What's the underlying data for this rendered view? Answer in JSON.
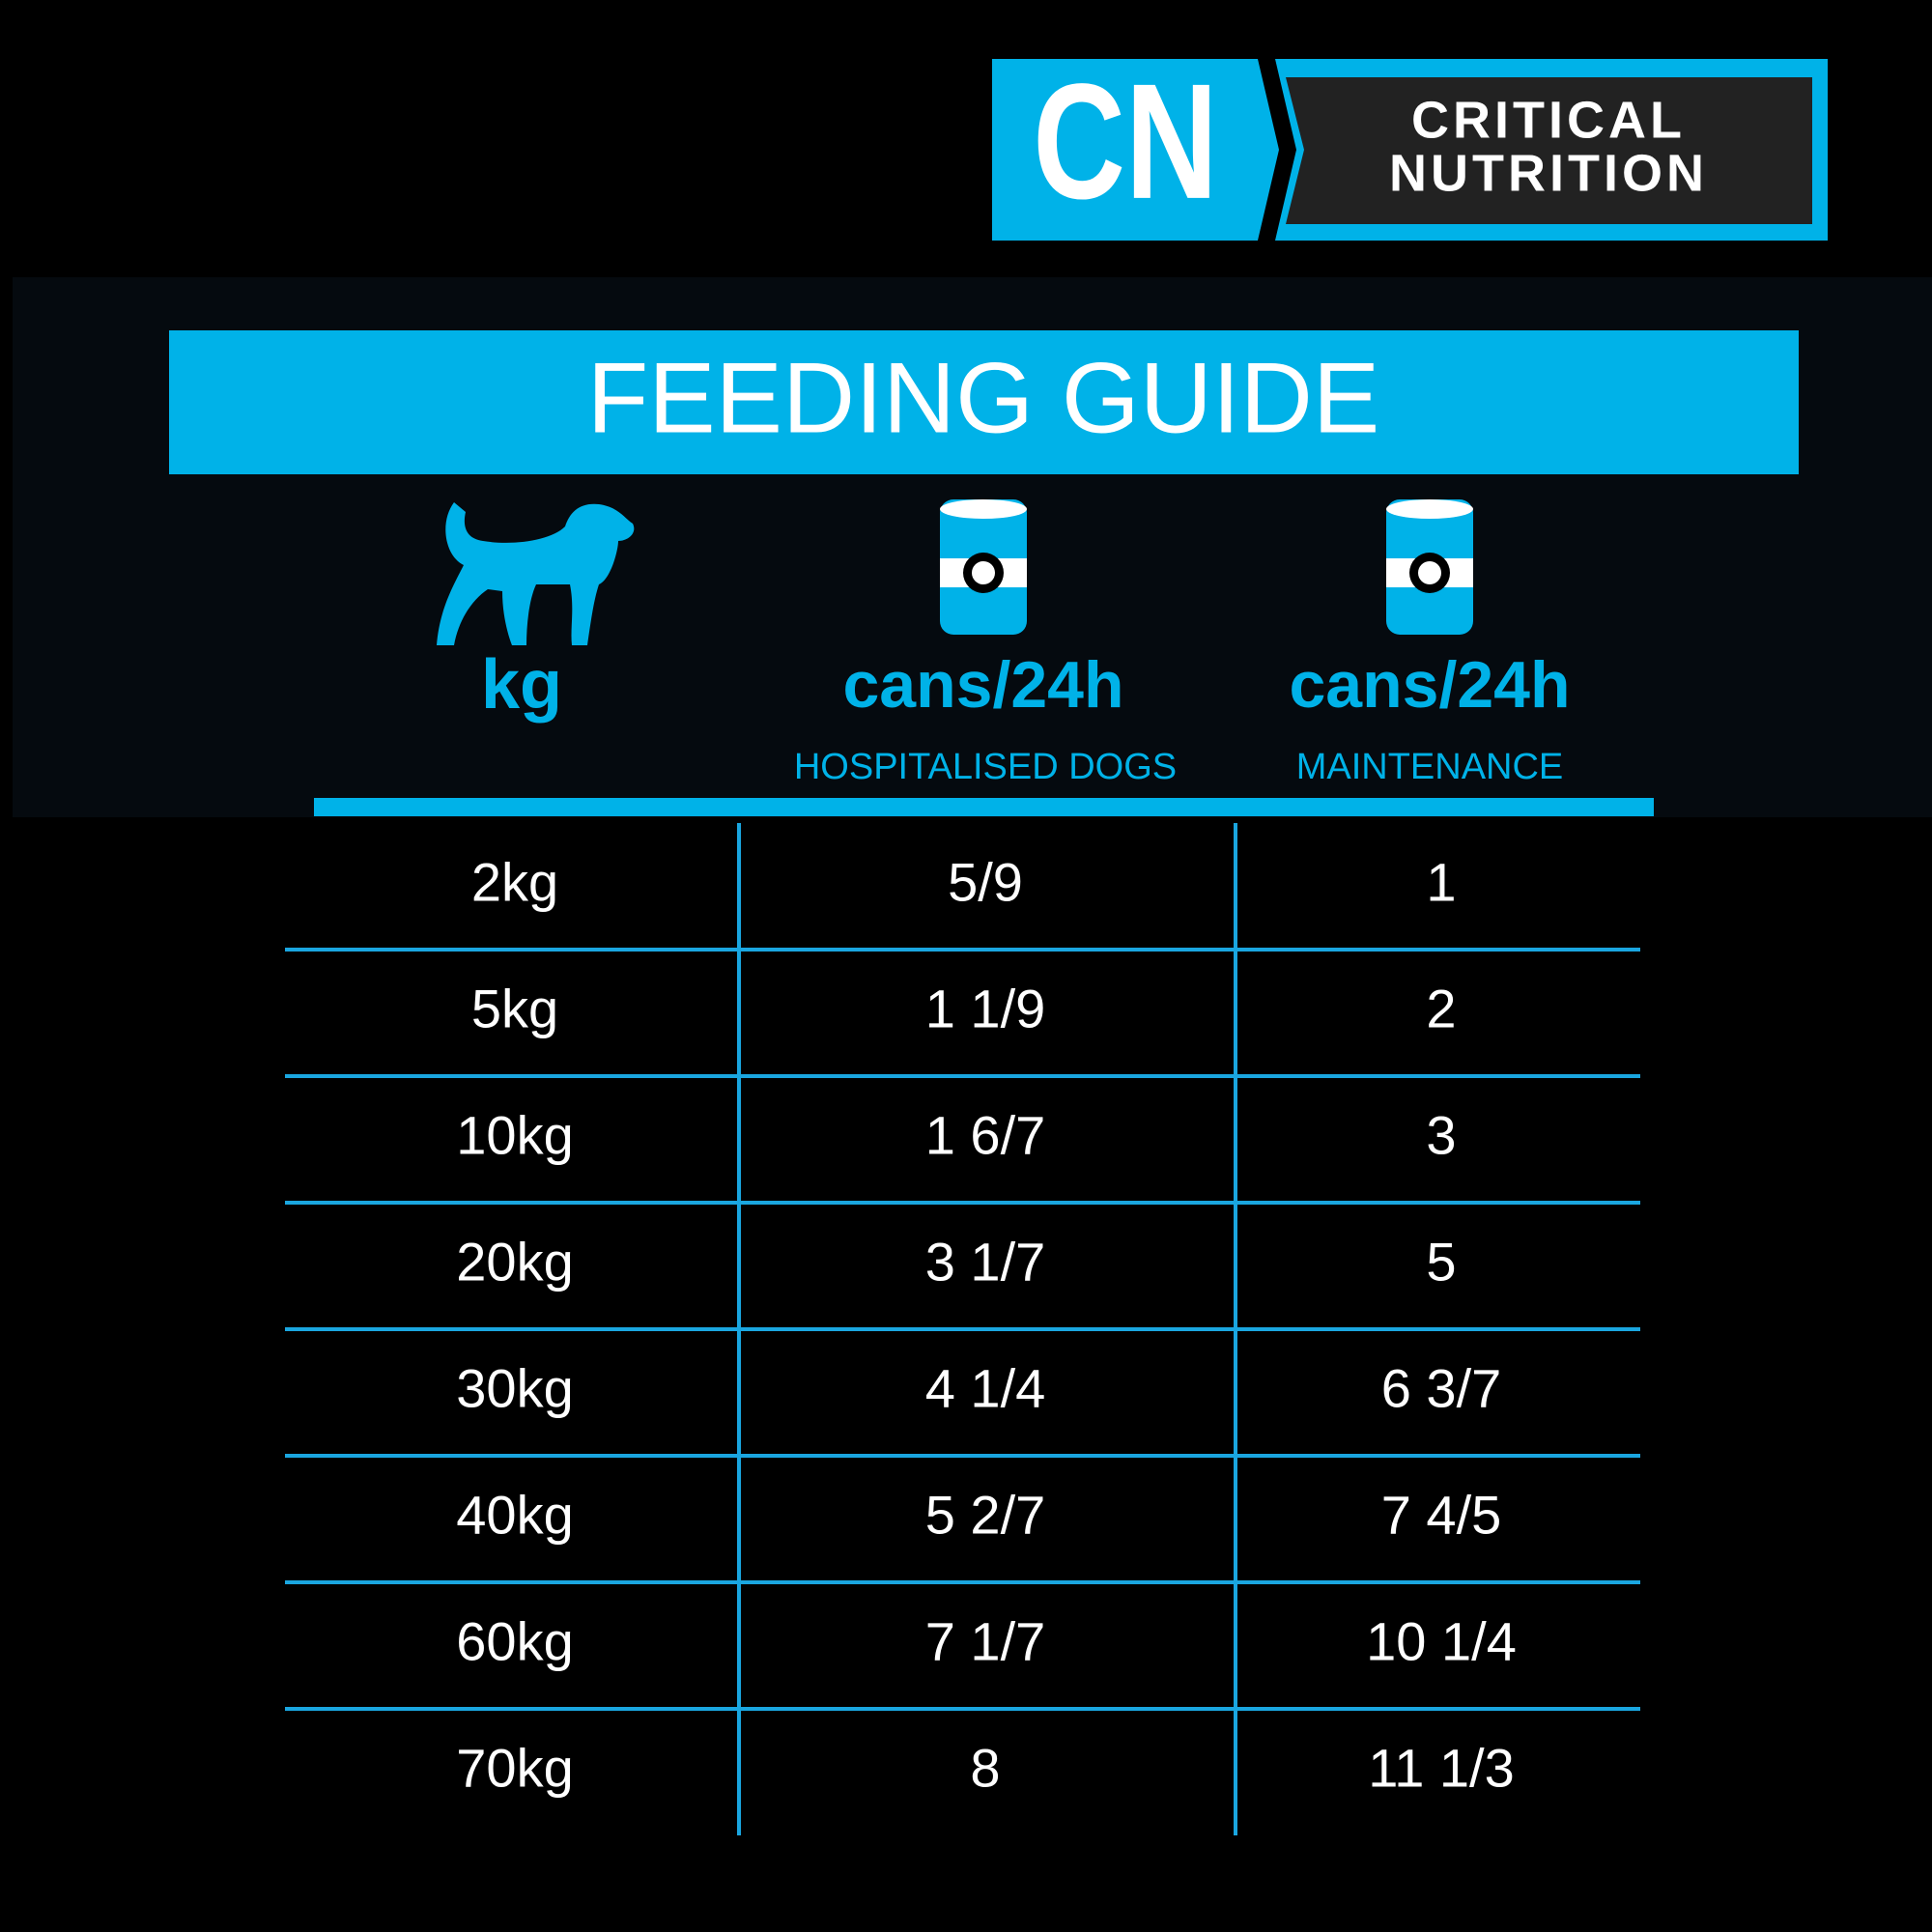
{
  "logo": {
    "mark": "CN",
    "lines": [
      "CRITICAL",
      "NUTRITION"
    ]
  },
  "title": "FEEDING GUIDE",
  "table": {
    "columns": [
      {
        "unit": "kg"
      },
      {
        "unit": "cans/24h",
        "label": "HOSPITALISED DOGS"
      },
      {
        "unit": "cans/24h",
        "label": "MAINTENANCE"
      }
    ],
    "rows": [
      [
        "2kg",
        "5/9",
        "1"
      ],
      [
        "5kg",
        "1 1/9",
        "2"
      ],
      [
        "10kg",
        "1 6/7",
        "3"
      ],
      [
        "20kg",
        "3 1/7",
        "5"
      ],
      [
        "30kg",
        "4 1/4",
        "6 3/7"
      ],
      [
        "40kg",
        "5 2/7",
        "7 4/5"
      ],
      [
        "60kg",
        "7 1/7",
        "10 1/4"
      ],
      [
        "70kg",
        "8",
        "11 1/3"
      ]
    ]
  }
}
